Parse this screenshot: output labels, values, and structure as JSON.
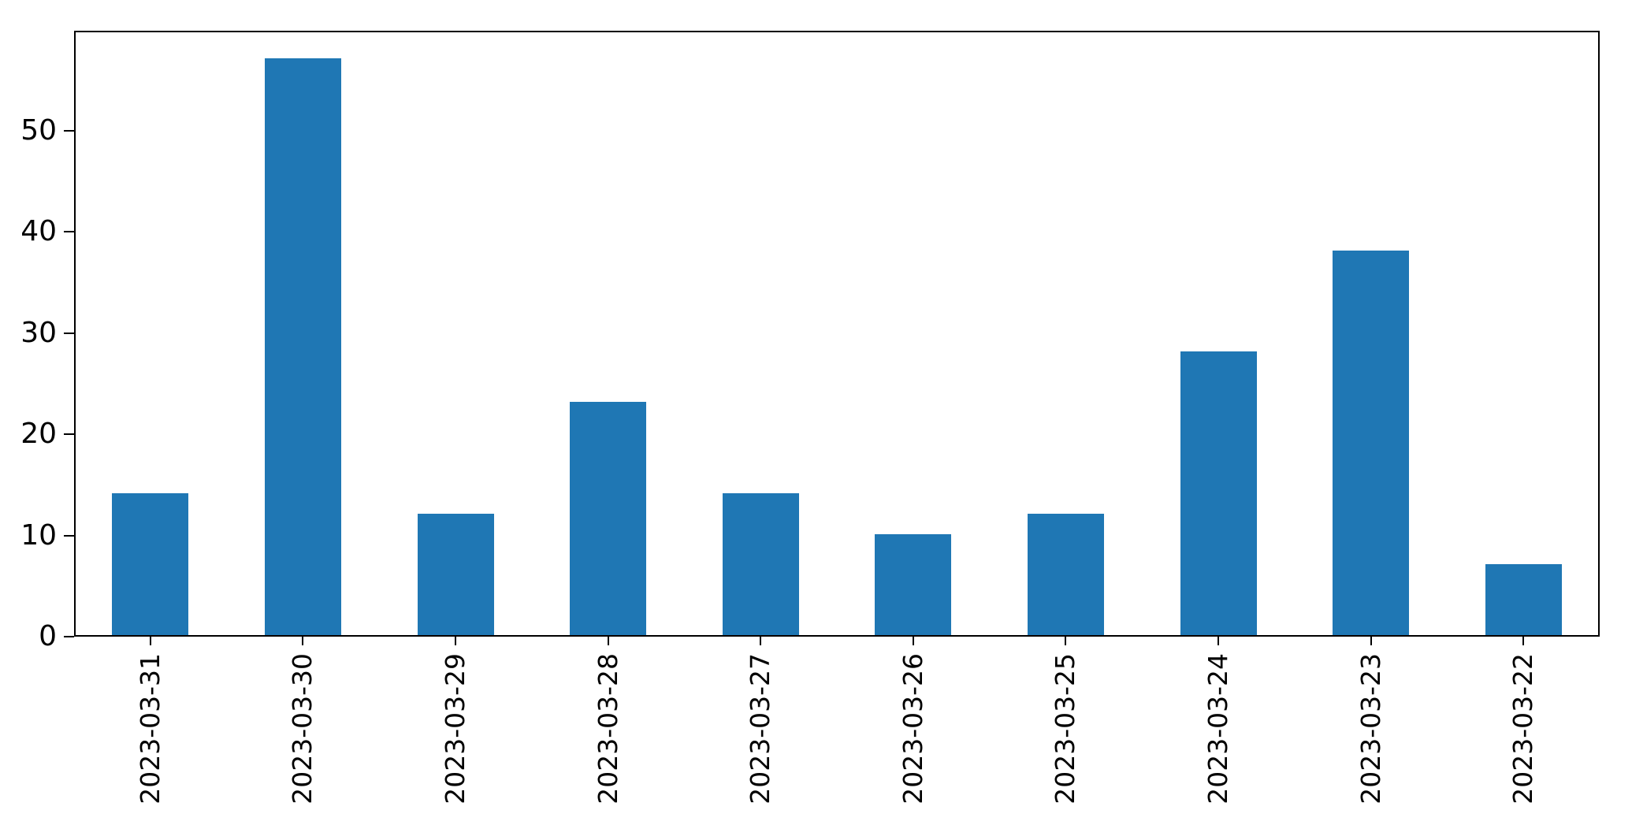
{
  "figure": {
    "background": "#ffffff"
  },
  "chart_data": {
    "type": "bar",
    "title": "",
    "xlabel": "",
    "ylabel": "",
    "categories": [
      "2023-03-31",
      "2023-03-30",
      "2023-03-29",
      "2023-03-28",
      "2023-03-27",
      "2023-03-26",
      "2023-03-25",
      "2023-03-24",
      "2023-03-23",
      "2023-03-22"
    ],
    "values": [
      14,
      57,
      12,
      23,
      14,
      10,
      12,
      28,
      38,
      7
    ],
    "yticks": [
      0,
      10,
      20,
      30,
      40,
      50
    ],
    "ylim": [
      0,
      59.85
    ],
    "x_tick_label_rotation_deg": 90,
    "grid": false,
    "legend": false,
    "bar_color": "#1f77b4",
    "spine_color": "#000000",
    "tick_label_color": "#000000"
  }
}
